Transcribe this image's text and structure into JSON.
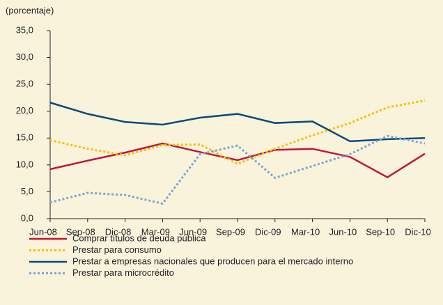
{
  "chart_data": {
    "type": "line",
    "y_label": "(porcentaje)",
    "categories": [
      "Jun-08",
      "Sep-08",
      "Dic-08",
      "Mar-09",
      "Jun-09",
      "Sep-09",
      "Dic-09",
      "Mar-10",
      "Jun-10",
      "Sep-10",
      "Dic-10"
    ],
    "series": [
      {
        "name": "Comprar títulos de deuda pública",
        "color": "#c0163c",
        "dash": "solid",
        "values": [
          9.2,
          10.8,
          12.3,
          14.0,
          12.4,
          10.9,
          12.8,
          13.0,
          11.5,
          7.7,
          12.1
        ]
      },
      {
        "name": "Prestar para consumo",
        "color": "#f2c200",
        "dash": "dotted",
        "values": [
          14.6,
          13.0,
          11.8,
          13.7,
          13.8,
          10.2,
          13.0,
          15.5,
          17.8,
          20.7,
          22.0
        ]
      },
      {
        "name": "Prestar a empresas nacionales que producen para el mercado interno",
        "color": "#0a4a7a",
        "dash": "solid",
        "values": [
          21.6,
          19.5,
          18.0,
          17.5,
          18.8,
          19.5,
          17.8,
          18.1,
          14.4,
          14.8,
          15.0
        ]
      },
      {
        "name": "Prestar para microcrédito",
        "color": "#7aa6cf",
        "dash": "dotted",
        "values": [
          3.0,
          4.8,
          4.4,
          2.8,
          12.0,
          13.6,
          7.6,
          9.8,
          12.0,
          15.4,
          14.0
        ]
      }
    ],
    "ylim": [
      0,
      35
    ],
    "yticks": [
      {
        "value": 0,
        "label": "0,0"
      },
      {
        "value": 5,
        "label": "5,0"
      },
      {
        "value": 10,
        "label": "10,0"
      },
      {
        "value": 15,
        "label": "15,0"
      },
      {
        "value": 20,
        "label": "20,0"
      },
      {
        "value": 25,
        "label": "25,0"
      },
      {
        "value": 30,
        "label": "30,0"
      },
      {
        "value": 35,
        "label": "35,0"
      }
    ],
    "grid": false,
    "legend": "bottom"
  }
}
